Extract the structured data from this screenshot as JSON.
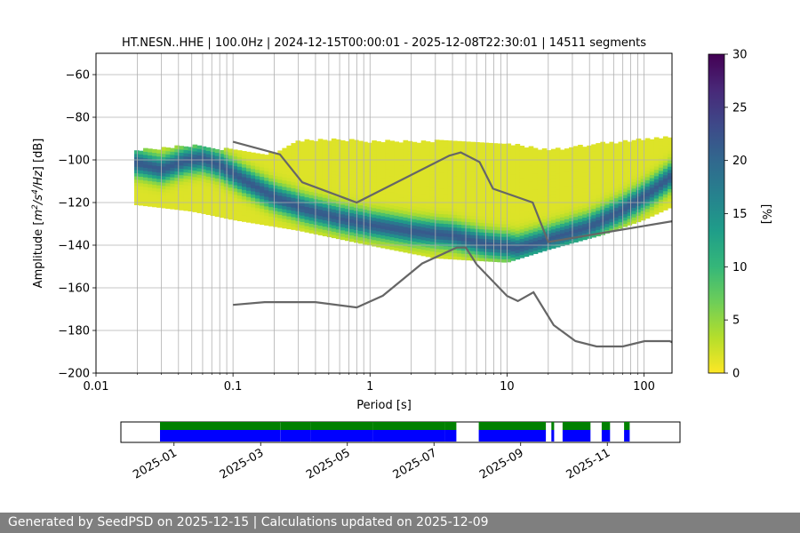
{
  "chart_data": {
    "type": "heatmap",
    "title": "HT.NESN..HHE | 100.0Hz | 2024-12-15T00:00:01 - 2025-12-08T22:30:01 | 14511 segments",
    "xlabel": "Period [s]",
    "ylabel_parts": [
      "Amplitude [",
      "m",
      "2",
      "/",
      "s",
      "4",
      "/Hz",
      "] [dB]"
    ],
    "xscale": "log",
    "xlim": [
      0.01,
      160
    ],
    "ylim": [
      -200,
      -50
    ],
    "x_ticks": [
      {
        "value": 0.01,
        "label": "0.01"
      },
      {
        "value": 0.1,
        "label": "0.1"
      },
      {
        "value": 1,
        "label": "1"
      },
      {
        "value": 10,
        "label": "10"
      },
      {
        "value": 100,
        "label": "100"
      }
    ],
    "y_ticks": [
      {
        "value": -60,
        "label": "−60"
      },
      {
        "value": -80,
        "label": "−80"
      },
      {
        "value": -100,
        "label": "−100"
      },
      {
        "value": -120,
        "label": "−120"
      },
      {
        "value": -140,
        "label": "−140"
      },
      {
        "value": -160,
        "label": "−160"
      },
      {
        "value": -180,
        "label": "−180"
      },
      {
        "value": -200,
        "label": "−200"
      }
    ],
    "psd_mode_curve": [
      [
        0.02,
        -102
      ],
      [
        0.03,
        -105
      ],
      [
        0.045,
        -101
      ],
      [
        0.06,
        -100
      ],
      [
        0.08,
        -103
      ],
      [
        0.12,
        -110
      ],
      [
        0.2,
        -118
      ],
      [
        0.35,
        -124
      ],
      [
        0.6,
        -128
      ],
      [
        1,
        -131
      ],
      [
        2,
        -134
      ],
      [
        4,
        -136
      ],
      [
        7,
        -140
      ],
      [
        12,
        -142
      ],
      [
        20,
        -138
      ],
      [
        40,
        -132
      ],
      [
        70,
        -124
      ],
      [
        110,
        -116
      ],
      [
        160,
        -108
      ]
    ],
    "psd_upper_envelope": [
      [
        0.02,
        -96
      ],
      [
        0.05,
        -94
      ],
      [
        0.1,
        -96
      ],
      [
        0.2,
        -98
      ],
      [
        0.3,
        -92
      ],
      [
        0.5,
        -91
      ],
      [
        1,
        -92
      ],
      [
        3,
        -92
      ],
      [
        10,
        -93
      ],
      [
        20,
        -96
      ],
      [
        50,
        -93
      ],
      [
        160,
        -90
      ]
    ],
    "psd_lower_envelope": [
      [
        0.02,
        -121
      ],
      [
        0.05,
        -124
      ],
      [
        0.1,
        -128
      ],
      [
        0.3,
        -133
      ],
      [
        1,
        -140
      ],
      [
        3,
        -146
      ],
      [
        10,
        -148
      ],
      [
        20,
        -142
      ],
      [
        50,
        -135
      ],
      [
        100,
        -128
      ],
      [
        160,
        -122
      ]
    ],
    "nhnm_curve": [
      [
        0.1,
        -91.5
      ],
      [
        0.22,
        -97.4
      ],
      [
        0.32,
        -110.5
      ],
      [
        0.8,
        -120
      ],
      [
        3.8,
        -98
      ],
      [
        4.6,
        -96.5
      ],
      [
        6.3,
        -101
      ],
      [
        7.9,
        -113.5
      ],
      [
        15.4,
        -120
      ],
      [
        20,
        -138.5
      ],
      [
        160,
        -128.8
      ]
    ],
    "nlnm_curve": [
      [
        0.1,
        -168
      ],
      [
        0.17,
        -166.7
      ],
      [
        0.4,
        -166.7
      ],
      [
        0.8,
        -169.2
      ],
      [
        1.24,
        -163.7
      ],
      [
        2.4,
        -148.6
      ],
      [
        4.3,
        -141.1
      ],
      [
        5,
        -141.1
      ],
      [
        6,
        -149
      ],
      [
        10,
        -163.8
      ],
      [
        12,
        -166.2
      ],
      [
        15.6,
        -162.1
      ],
      [
        21.9,
        -177.5
      ],
      [
        31.6,
        -185
      ],
      [
        45,
        -187.5
      ],
      [
        70,
        -187.5
      ],
      [
        101,
        -185
      ],
      [
        154,
        -185
      ],
      [
        160,
        -185.5
      ]
    ],
    "colorbar": {
      "label": "[%]",
      "min": 0,
      "max": 30,
      "ticks": [
        {
          "value": 0,
          "label": "0"
        },
        {
          "value": 5,
          "label": "5"
        },
        {
          "value": 10,
          "label": "10"
        },
        {
          "value": 15,
          "label": "15"
        },
        {
          "value": 20,
          "label": "20"
        },
        {
          "value": 25,
          "label": "25"
        },
        {
          "value": 30,
          "label": "30"
        }
      ],
      "colormap": [
        "#fde725",
        "#b5de2b",
        "#6ece58",
        "#35b779",
        "#1f9e89",
        "#26828e",
        "#31688e",
        "#3e4989",
        "#482878",
        "#440154"
      ]
    },
    "availability": {
      "date_ticks": [
        "2025-01",
        "2025-03",
        "2025-05",
        "2025-07",
        "2025-09",
        "2025-11"
      ],
      "data_color": "#0000ff",
      "processed_color": "#008000",
      "blocks": [
        {
          "start": 0.07,
          "end": 0.285,
          "processed": true
        },
        {
          "start": 0.285,
          "end": 0.34,
          "processed": true
        },
        {
          "start": 0.34,
          "end": 0.45,
          "processed": true
        },
        {
          "start": 0.45,
          "end": 0.58,
          "processed": true
        },
        {
          "start": 0.58,
          "end": 0.6,
          "processed": true
        },
        {
          "start": 0.64,
          "end": 0.76,
          "processed": true
        },
        {
          "start": 0.77,
          "end": 0.775,
          "processed": true
        },
        {
          "start": 0.79,
          "end": 0.84,
          "processed": true
        },
        {
          "start": 0.86,
          "end": 0.875,
          "processed": true
        },
        {
          "start": 0.9,
          "end": 0.91,
          "processed": true
        }
      ]
    }
  },
  "footer": {
    "text": "Generated by SeedPSD on 2025-12-15 | Calculations updated on 2025-12-09"
  }
}
